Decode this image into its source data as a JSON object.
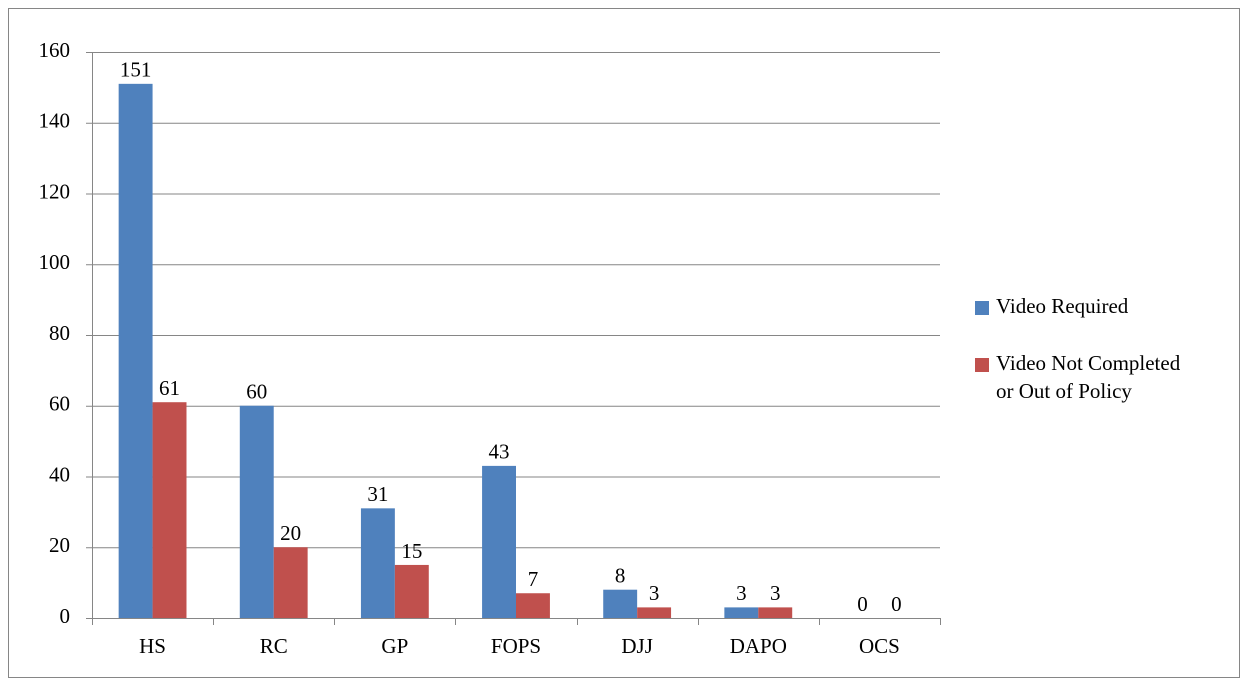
{
  "chart_data": {
    "type": "bar",
    "categories": [
      "HS",
      "RC",
      "GP",
      "FOPS",
      "DJJ",
      "DAPO",
      "OCS"
    ],
    "series": [
      {
        "name": "Video Required",
        "color": "#4f81bd",
        "values": [
          151,
          60,
          31,
          43,
          8,
          3,
          0
        ]
      },
      {
        "name": "Video Not Completed or Out of Policy",
        "color": "#c0504d",
        "values": [
          61,
          20,
          15,
          7,
          3,
          3,
          0
        ]
      }
    ],
    "ylim": [
      0,
      160
    ],
    "yticks": [
      0,
      20,
      40,
      60,
      80,
      100,
      120,
      140,
      160
    ],
    "grid": true,
    "legend": "right"
  }
}
